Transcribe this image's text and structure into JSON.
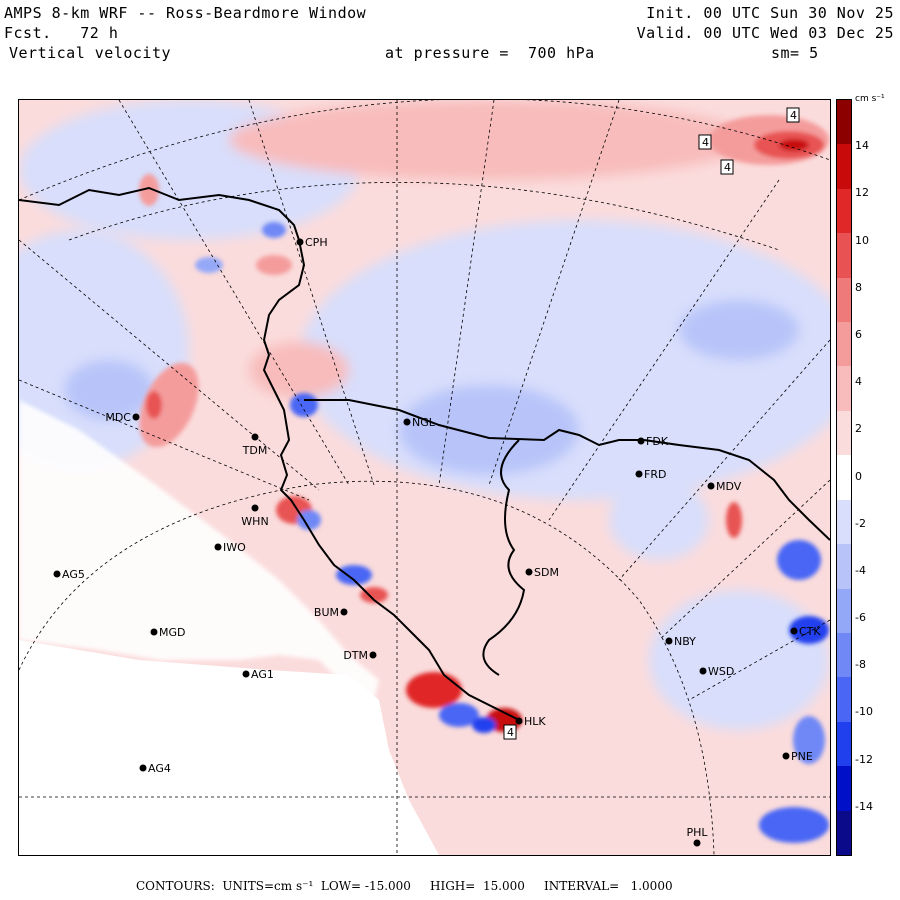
{
  "header": {
    "line1_left": "AMPS 8-km WRF -- Ross-Beardmore Window",
    "line2_left": "Fcst.   72 h",
    "line3_left": "Vertical velocity",
    "line3_mid": "at pressure =  700 hPa",
    "line1_right": "Init. 00 UTC Sun 30 Nov 25",
    "line2_right": "Valid. 00 UTC Wed 03 Dec 25",
    "line3_right": "sm= 5"
  },
  "colorbar": {
    "units": "cm s⁻¹",
    "ticks": [
      "14",
      "12",
      "10",
      "8",
      "6",
      "4",
      "2",
      "0",
      "-2",
      "-4",
      "-6",
      "-8",
      "-10",
      "-12",
      "-14"
    ],
    "tick_values": [
      14,
      12,
      10,
      8,
      6,
      4,
      2,
      0,
      -2,
      -4,
      -6,
      -8,
      -10,
      -12,
      -14
    ],
    "range": [
      -16,
      16
    ],
    "colors": [
      "#0a0a8a",
      "#0010c8",
      "#2040ee",
      "#4a66f4",
      "#6f88f6",
      "#94a8f8",
      "#b8c4f9",
      "#d8defb",
      "#ffffff",
      "#fbdcdc",
      "#f8bcbc",
      "#f49c9c",
      "#ef7a7a",
      "#e85252",
      "#e02828",
      "#c80a0a",
      "#8c0000"
    ]
  },
  "stations": [
    {
      "id": "CPH",
      "label": "CPH"
    },
    {
      "id": "MDC",
      "label": "MDC"
    },
    {
      "id": "TDM",
      "label": "TDM"
    },
    {
      "id": "NGL",
      "label": "NGL"
    },
    {
      "id": "FDK",
      "label": "FDK"
    },
    {
      "id": "FRD",
      "label": "FRD"
    },
    {
      "id": "MDV",
      "label": "MDV"
    },
    {
      "id": "WHN",
      "label": "WHN"
    },
    {
      "id": "IWO",
      "label": "IWO"
    },
    {
      "id": "AG5",
      "label": "AG5"
    },
    {
      "id": "SDM",
      "label": "SDM"
    },
    {
      "id": "BUM",
      "label": "BUM"
    },
    {
      "id": "MGD",
      "label": "MGD"
    },
    {
      "id": "NBY",
      "label": "NBY"
    },
    {
      "id": "CTK",
      "label": "CTK"
    },
    {
      "id": "DTM",
      "label": "DTM"
    },
    {
      "id": "AG1",
      "label": "AG1"
    },
    {
      "id": "WSD",
      "label": "WSD"
    },
    {
      "id": "HLK",
      "label": "HLK"
    },
    {
      "id": "AG4",
      "label": "AG4"
    },
    {
      "id": "PNE",
      "label": "PNE"
    },
    {
      "id": "PHL",
      "label": "PHL"
    }
  ],
  "contour_labels": [
    "4",
    "4",
    "4",
    "4"
  ],
  "footer": {
    "contours_label": "CONTOURS:  UNITS=cm s⁻¹  LOW= -15.000     HIGH=  15.000     INTERVAL=   1.0000"
  }
}
